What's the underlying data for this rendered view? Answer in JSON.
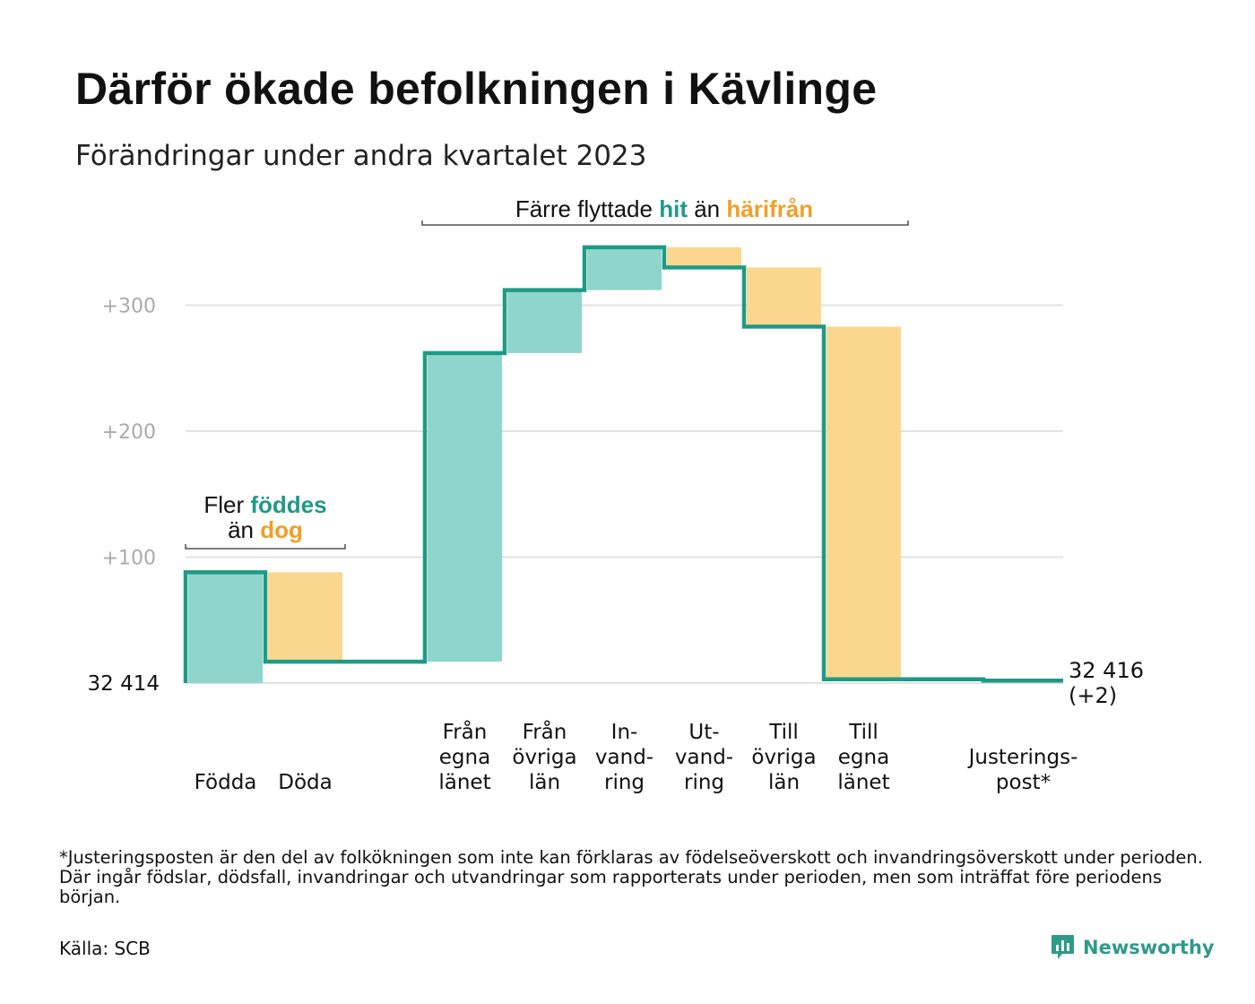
{
  "header": {
    "title": "Därför ökade befolkningen i Kävlinge",
    "subtitle": "Förändringar under andra kvartalet 2023"
  },
  "chart_data": {
    "type": "waterfall",
    "title": "Därför ökade befolkningen i Kävlinge",
    "subtitle": "Förändringar under andra kvartalet 2023",
    "start_label": "32  414",
    "start_value": 32414,
    "end_label_line1": "32 416",
    "end_label_line2": "(+2)",
    "end_value": 32416,
    "ylim": [
      0,
      350
    ],
    "yticks": [
      {
        "value": 100,
        "label": "+100"
      },
      {
        "value": 200,
        "label": "+200"
      },
      {
        "value": 300,
        "label": "+300"
      }
    ],
    "grid": true,
    "steps": [
      {
        "category": "Födda",
        "label_lines": [
          "Födda"
        ],
        "value": 88,
        "sign": "in"
      },
      {
        "category": "Döda",
        "label_lines": [
          "Döda"
        ],
        "value": -71,
        "sign": "out"
      },
      {
        "category": "gap",
        "label_lines": [],
        "value": 0,
        "sign": "none"
      },
      {
        "category": "Från egna länet",
        "label_lines": [
          "Från",
          "egna",
          "länet"
        ],
        "value": 245,
        "sign": "in"
      },
      {
        "category": "Från övriga län",
        "label_lines": [
          "Från",
          "övriga",
          "län"
        ],
        "value": 50,
        "sign": "in"
      },
      {
        "category": "Invandring",
        "label_lines": [
          "In-",
          "vand-",
          "ring"
        ],
        "value": 34,
        "sign": "in"
      },
      {
        "category": "Utvandring",
        "label_lines": [
          "Ut-",
          "vand-",
          "ring"
        ],
        "value": -16,
        "sign": "out"
      },
      {
        "category": "Till övriga län",
        "label_lines": [
          "Till",
          "övriga",
          "län"
        ],
        "value": -47,
        "sign": "out"
      },
      {
        "category": "Till egna länet",
        "label_lines": [
          "Till",
          "egna",
          "länet"
        ],
        "value": -280,
        "sign": "out"
      },
      {
        "category": "gap2",
        "label_lines": [],
        "value": 0,
        "sign": "none"
      },
      {
        "category": "Justeringspost*",
        "label_lines": [
          "Justerings-",
          "post*"
        ],
        "value": -1,
        "sign": "out"
      }
    ],
    "annotations": [
      {
        "id": "births",
        "span": [
          "Födda",
          "Döda"
        ],
        "line1": [
          {
            "text": "Fler ",
            "role": "plain"
          },
          {
            "text": "föddes",
            "role": "in"
          }
        ],
        "line2": [
          {
            "text": "än ",
            "role": "plain"
          },
          {
            "text": "dog",
            "role": "out"
          }
        ]
      },
      {
        "id": "moves",
        "span": [
          "Från egna länet",
          "Till egna länet"
        ],
        "line1": [
          {
            "text": "Färre flyttade ",
            "role": "plain"
          },
          {
            "text": "hit",
            "role": "in"
          },
          {
            "text": " än ",
            "role": "plain"
          },
          {
            "text": "härifrån",
            "role": "out"
          }
        ]
      }
    ],
    "colors": {
      "in_fill": "#8ed6cc",
      "out_fill": "#fbd68e",
      "step_line": "#1f9a85",
      "in_text": "#1f9a85",
      "out_text": "#f0a026",
      "grid": "#e1e1e1",
      "tick_text": "#aaaaaa"
    }
  },
  "footnote": "*Justeringsposten är den del av folkökningen som inte kan förklaras av födelseöverskott och invandringsöverskott under perioden. Där ingår födslar, dödsfall, invandringar och utvandringar som rapporterats under perioden, men som inträffat före periodens början.",
  "source": "Källa: SCB",
  "brand": {
    "name": "Newsworthy",
    "icon": "newsworthy-logo-icon",
    "color": "#2f9a87"
  }
}
